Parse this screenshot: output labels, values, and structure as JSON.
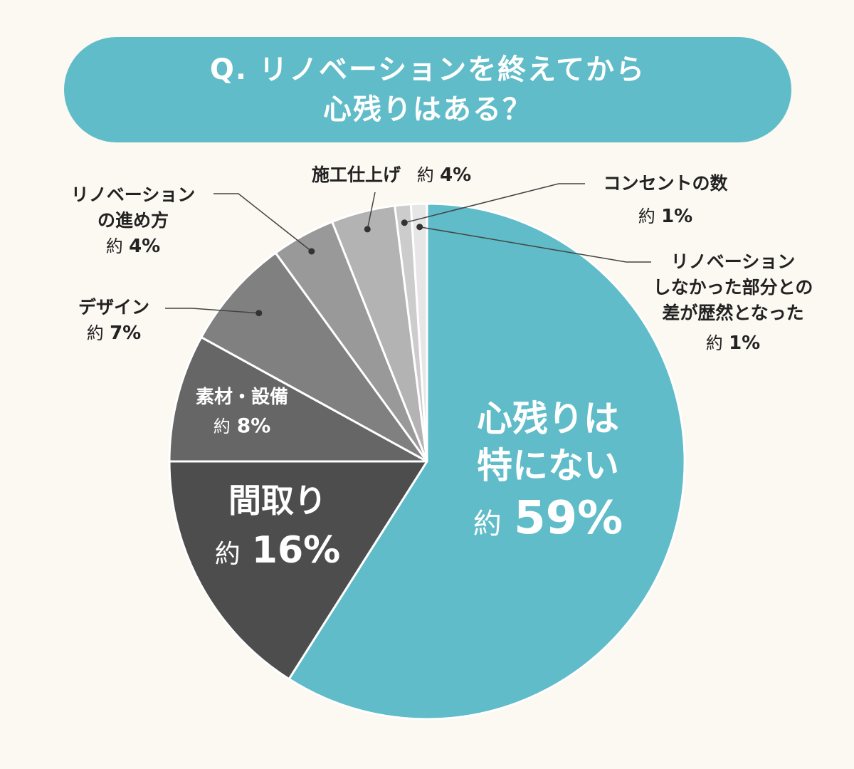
{
  "title": {
    "line1": "Q. リノベーションを終えてから",
    "line2": "心残りはある？"
  },
  "chart_data": {
    "type": "pie",
    "start": "top, clockwise",
    "slices": [
      {
        "name": "心残りは特にない",
        "name_lines": [
          "心残りは",
          "特にない"
        ],
        "prefix": "約",
        "value_text": "59%",
        "value": 59,
        "color": "#5fbcc8"
      },
      {
        "name": "間取り",
        "name_lines": [
          "間取り"
        ],
        "prefix": "約",
        "value_text": "16%",
        "value": 16,
        "color": "#4d4d4d"
      },
      {
        "name": "素材・設備",
        "name_lines": [
          "素材・設備"
        ],
        "prefix": "約",
        "value_text": "8%",
        "value": 8,
        "color": "#666666"
      },
      {
        "name": "デザイン",
        "name_lines": [
          "デザイン"
        ],
        "prefix": "約",
        "value_text": "7%",
        "value": 7,
        "color": "#808080"
      },
      {
        "name": "リノベーションの進め方",
        "name_lines": [
          "リノベーション",
          "の進め方"
        ],
        "prefix": "約",
        "value_text": "4%",
        "value": 4,
        "color": "#999999"
      },
      {
        "name": "施工仕上げ",
        "name_lines": [
          "施工仕上げ"
        ],
        "prefix": "約",
        "value_text": "4%",
        "value": 4,
        "color": "#b3b3b3"
      },
      {
        "name": "コンセントの数",
        "name_lines": [
          "コンセントの数"
        ],
        "prefix": "約",
        "value_text": "1%",
        "value": 1,
        "color": "#cccccc"
      },
      {
        "name": "リノベーションしなかった部分との差が歴然となった",
        "name_lines": [
          "リノベーション",
          "しなかった部分との",
          "差が歴然となった"
        ],
        "prefix": "約",
        "value_text": "1%",
        "value": 1,
        "color": "#e6e6e6"
      }
    ]
  }
}
